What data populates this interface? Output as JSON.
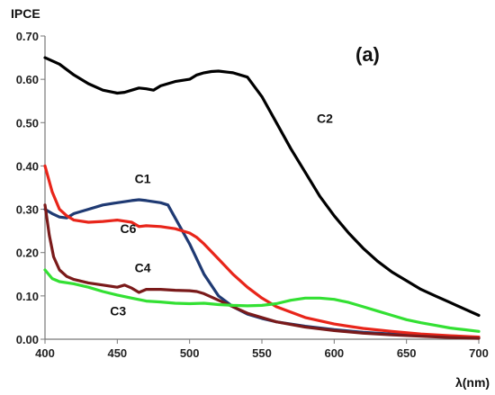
{
  "chart_data": {
    "type": "line",
    "panel_label": "(a)",
    "ylabel": "IPCE",
    "xlabel": "λ(nm)",
    "xlim": [
      400,
      700
    ],
    "ylim": [
      0,
      0.7
    ],
    "x_ticks": [
      "400",
      "450",
      "500",
      "550",
      "600",
      "650",
      "700"
    ],
    "y_ticks": [
      "0.00",
      "0.10",
      "0.20",
      "0.30",
      "0.40",
      "0.50",
      "0.60",
      "0.70"
    ],
    "grid": false,
    "series": [
      {
        "name": "C2",
        "color": "#000000",
        "x": [
          400,
          410,
          420,
          430,
          440,
          450,
          455,
          460,
          465,
          470,
          475,
          480,
          490,
          500,
          505,
          510,
          515,
          520,
          530,
          540,
          550,
          560,
          570,
          580,
          590,
          600,
          610,
          620,
          630,
          640,
          650,
          660,
          670,
          680,
          690,
          700
        ],
        "y": [
          0.65,
          0.635,
          0.61,
          0.59,
          0.575,
          0.568,
          0.57,
          0.575,
          0.58,
          0.578,
          0.575,
          0.585,
          0.595,
          0.6,
          0.61,
          0.615,
          0.618,
          0.619,
          0.615,
          0.605,
          0.56,
          0.5,
          0.44,
          0.385,
          0.33,
          0.285,
          0.245,
          0.21,
          0.18,
          0.155,
          0.135,
          0.115,
          0.1,
          0.085,
          0.07,
          0.055
        ]
      },
      {
        "name": "C1",
        "color": "#1f3a73",
        "x": [
          400,
          405,
          410,
          415,
          420,
          430,
          440,
          450,
          460,
          465,
          470,
          480,
          485,
          490,
          500,
          510,
          520,
          530,
          540,
          550,
          560,
          580,
          600,
          620,
          650,
          680,
          700
        ],
        "y": [
          0.3,
          0.29,
          0.282,
          0.28,
          0.29,
          0.3,
          0.31,
          0.315,
          0.32,
          0.322,
          0.32,
          0.315,
          0.31,
          0.28,
          0.22,
          0.15,
          0.1,
          0.075,
          0.058,
          0.048,
          0.04,
          0.03,
          0.022,
          0.016,
          0.01,
          0.005,
          0.003
        ]
      },
      {
        "name": "C6",
        "color": "#e8251a",
        "x": [
          400,
          405,
          410,
          415,
          420,
          430,
          440,
          450,
          460,
          465,
          470,
          480,
          490,
          500,
          505,
          510,
          520,
          530,
          540,
          550,
          560,
          580,
          600,
          620,
          640,
          660,
          680,
          700
        ],
        "y": [
          0.4,
          0.34,
          0.3,
          0.285,
          0.275,
          0.27,
          0.272,
          0.275,
          0.27,
          0.26,
          0.262,
          0.26,
          0.255,
          0.245,
          0.235,
          0.22,
          0.185,
          0.15,
          0.12,
          0.095,
          0.075,
          0.05,
          0.035,
          0.025,
          0.018,
          0.012,
          0.008,
          0.005
        ]
      },
      {
        "name": "C4",
        "color": "#7a1a1a",
        "x": [
          400,
          403,
          406,
          410,
          415,
          420,
          430,
          440,
          450,
          455,
          460,
          465,
          470,
          480,
          490,
          500,
          505,
          510,
          520,
          530,
          540,
          550,
          560,
          580,
          600,
          620,
          640,
          660,
          680,
          700
        ],
        "y": [
          0.31,
          0.24,
          0.19,
          0.16,
          0.145,
          0.138,
          0.13,
          0.125,
          0.12,
          0.125,
          0.118,
          0.108,
          0.115,
          0.115,
          0.113,
          0.112,
          0.11,
          0.105,
          0.09,
          0.075,
          0.06,
          0.05,
          0.04,
          0.028,
          0.02,
          0.014,
          0.01,
          0.007,
          0.004,
          0.002
        ]
      },
      {
        "name": "C3",
        "color": "#33e033",
        "x": [
          400,
          405,
          410,
          420,
          430,
          440,
          450,
          460,
          470,
          480,
          490,
          500,
          510,
          520,
          530,
          540,
          550,
          560,
          570,
          580,
          590,
          600,
          610,
          620,
          630,
          640,
          650,
          660,
          670,
          680,
          690,
          700
        ],
        "y": [
          0.16,
          0.14,
          0.133,
          0.128,
          0.12,
          0.11,
          0.102,
          0.095,
          0.088,
          0.086,
          0.083,
          0.082,
          0.083,
          0.08,
          0.078,
          0.077,
          0.078,
          0.082,
          0.09,
          0.095,
          0.095,
          0.092,
          0.085,
          0.075,
          0.065,
          0.055,
          0.045,
          0.038,
          0.032,
          0.026,
          0.022,
          0.018
        ]
      }
    ],
    "annotations": [
      {
        "text": "C2",
        "x": 588,
        "y": 0.5
      },
      {
        "text": "C1",
        "x": 462,
        "y": 0.36
      },
      {
        "text": "C6",
        "x": 452,
        "y": 0.245
      },
      {
        "text": "C4",
        "x": 462,
        "y": 0.155
      },
      {
        "text": "C3",
        "x": 445,
        "y": 0.055
      }
    ]
  }
}
